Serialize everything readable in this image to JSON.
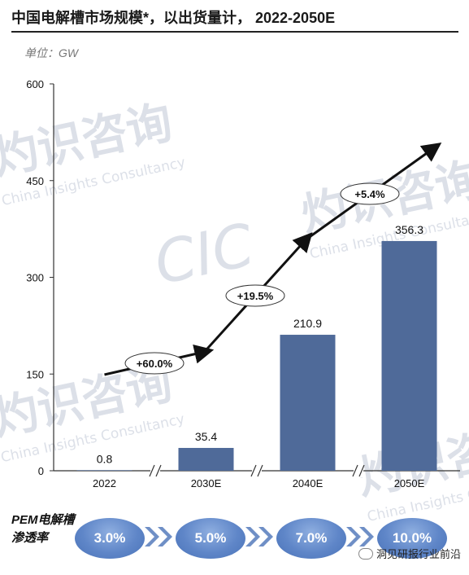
{
  "title": "中国电解槽市场规模*，以出货量计， 2022-2050E",
  "unit": "单位：GW",
  "watermarks": [
    "灼识咨询",
    "China Insights Consultancy",
    "CIC"
  ],
  "chart_data": {
    "type": "bar",
    "categories": [
      "2022",
      "2030E",
      "2040E",
      "2050E"
    ],
    "values": [
      0.8,
      35.4,
      210.9,
      356.3
    ],
    "value_labels": [
      "0.8",
      "35.4",
      "210.9",
      "356.3"
    ],
    "ylim": [
      0,
      600
    ],
    "yticks": [
      0,
      150,
      300,
      450,
      600
    ],
    "ytick_labels": [
      "0",
      "150",
      "300",
      "450",
      "600"
    ],
    "axis_breaks": true,
    "bar_color": "#4f6a99",
    "growth_labels": [
      "+60.0%",
      "+19.5%",
      "+5.4%"
    ],
    "title": "中国电解槽市场规模*，以出货量计， 2022-2050E",
    "xlabel": "",
    "ylabel": ""
  },
  "penetration": {
    "label": "PEM电解槽渗透率",
    "values": [
      "3.0%",
      "5.0%",
      "7.0%",
      "10.0%"
    ]
  },
  "footer": {
    "text": "洞见研报行业前沿"
  }
}
